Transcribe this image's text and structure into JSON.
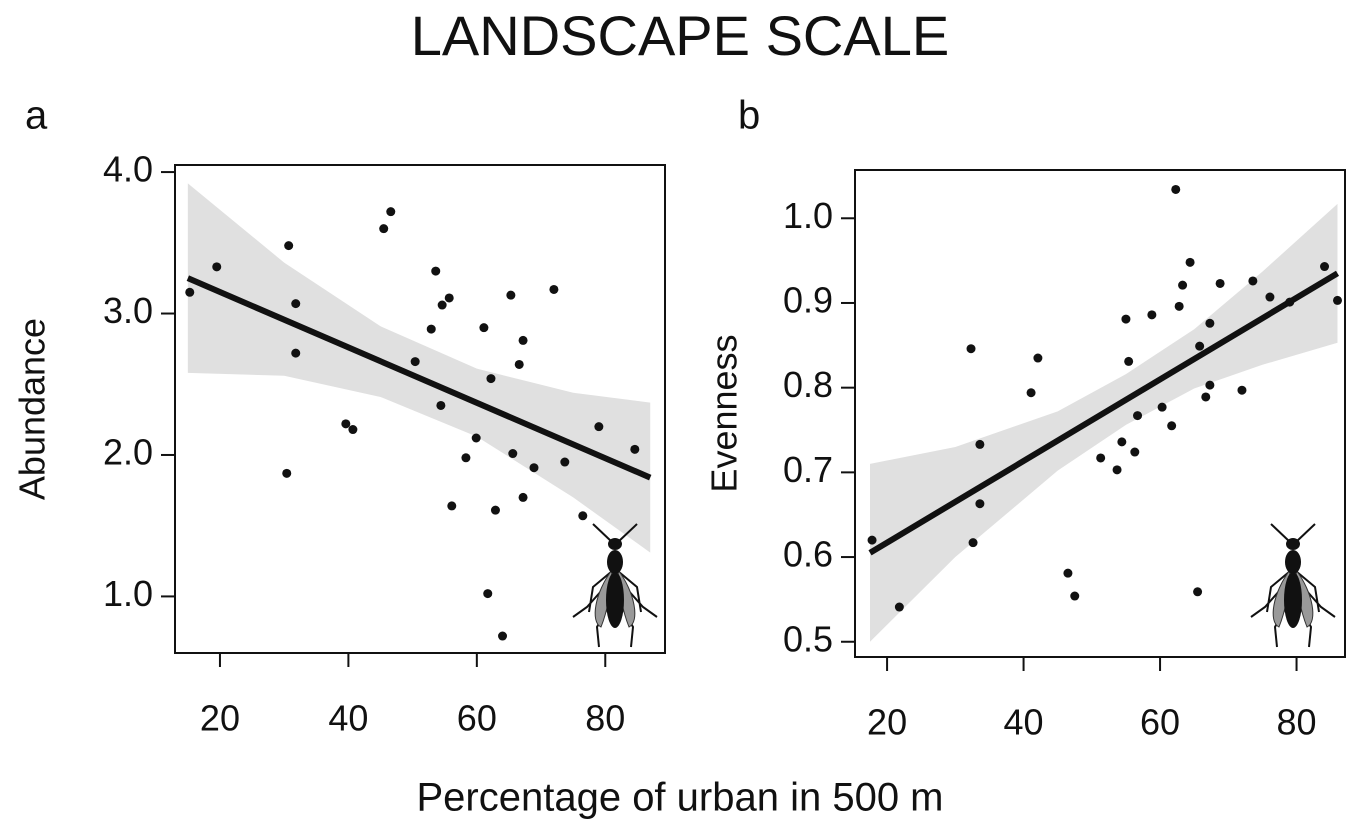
{
  "title": "LANDSCAPE SCALE",
  "xlabel": "Percentage of urban in 500 m",
  "chart_data": [
    {
      "type": "scatter",
      "panel": "a",
      "ylabel": "Abundance",
      "point_color": "#111111",
      "band_color": "#e0e0e0",
      "line_color": "#111111",
      "xlim": [
        13,
        89.3
      ],
      "ylim": [
        0.6,
        4.05
      ],
      "xticks": [
        20,
        40,
        60,
        80
      ],
      "yticks": [
        {
          "value": 1,
          "label": "1.0"
        },
        {
          "value": 2,
          "label": "2.0"
        },
        {
          "value": 3,
          "label": "3.0"
        },
        {
          "value": 4,
          "label": "4.0"
        }
      ],
      "x": [
        15.3,
        19.5,
        30.7,
        30.4,
        31.8,
        31.8,
        39.6,
        40.7,
        45.5,
        46.6,
        50.4,
        52.9,
        53.6,
        54.6,
        55.7,
        54.4,
        56.1,
        59.9,
        58.3,
        61.1,
        62.2,
        61.7,
        62.9,
        64.0,
        65.3,
        66.6,
        67.2,
        65.6,
        67.2,
        68.9,
        72.0,
        73.7,
        76.5,
        79.0,
        84.6
      ],
      "values": [
        3.15,
        3.33,
        3.48,
        1.87,
        3.07,
        2.72,
        2.22,
        2.18,
        3.6,
        3.72,
        2.66,
        2.89,
        3.3,
        3.06,
        3.11,
        2.35,
        1.64,
        2.12,
        1.98,
        2.9,
        2.54,
        1.02,
        1.61,
        0.72,
        3.13,
        2.64,
        2.81,
        2.01,
        1.7,
        1.91,
        3.17,
        1.95,
        1.57,
        2.2,
        2.04
      ],
      "fit": {
        "x": [
          15,
          87
        ],
        "values": [
          3.25,
          1.84
        ]
      },
      "band": {
        "x": [
          15,
          30,
          45,
          60,
          75,
          87
        ],
        "upper": [
          3.92,
          3.36,
          2.91,
          2.61,
          2.44,
          2.37
        ],
        "lower": [
          2.58,
          2.56,
          2.41,
          2.13,
          1.7,
          1.31
        ]
      }
    },
    {
      "type": "scatter",
      "panel": "b",
      "ylabel": "Evenness",
      "point_color": "#111111",
      "band_color": "#e0e0e0",
      "line_color": "#111111",
      "xlim": [
        15.3,
        87.1
      ],
      "ylim": [
        0.482,
        1.057
      ],
      "xticks": [
        20,
        40,
        60,
        80
      ],
      "yticks": [
        0.5,
        0.6,
        0.7,
        0.8,
        0.9,
        {
          "value": 1,
          "label": "1.0"
        }
      ],
      "x": [
        17.8,
        21.8,
        32.3,
        32.6,
        33.6,
        33.6,
        41.1,
        42.1,
        46.5,
        47.5,
        51.3,
        53.7,
        54.4,
        55.0,
        55.4,
        56.3,
        56.7,
        58.8,
        60.3,
        61.7,
        62.3,
        62.8,
        63.3,
        64.4,
        65.8,
        66.7,
        67.3,
        67.3,
        65.5,
        68.8,
        72.0,
        73.6,
        76.1,
        79.0,
        84.1,
        86.0
      ],
      "values": [
        0.62,
        0.541,
        0.846,
        0.617,
        0.733,
        0.663,
        0.794,
        0.835,
        0.581,
        0.554,
        0.717,
        0.703,
        0.736,
        0.881,
        0.831,
        0.724,
        0.767,
        0.886,
        0.777,
        0.755,
        1.034,
        0.896,
        0.921,
        0.948,
        0.849,
        0.789,
        0.876,
        0.803,
        0.559,
        0.923,
        0.797,
        0.926,
        0.907,
        0.901,
        0.943,
        0.903
      ],
      "fit": {
        "x": [
          17.5,
          86
        ],
        "values": [
          0.605,
          0.935
        ]
      },
      "band": {
        "x": [
          17.5,
          30,
          45,
          55,
          65,
          75,
          86
        ],
        "upper": [
          0.71,
          0.73,
          0.772,
          0.816,
          0.869,
          0.937,
          1.017
        ],
        "lower": [
          0.5,
          0.6,
          0.702,
          0.756,
          0.799,
          0.827,
          0.853
        ]
      }
    }
  ]
}
